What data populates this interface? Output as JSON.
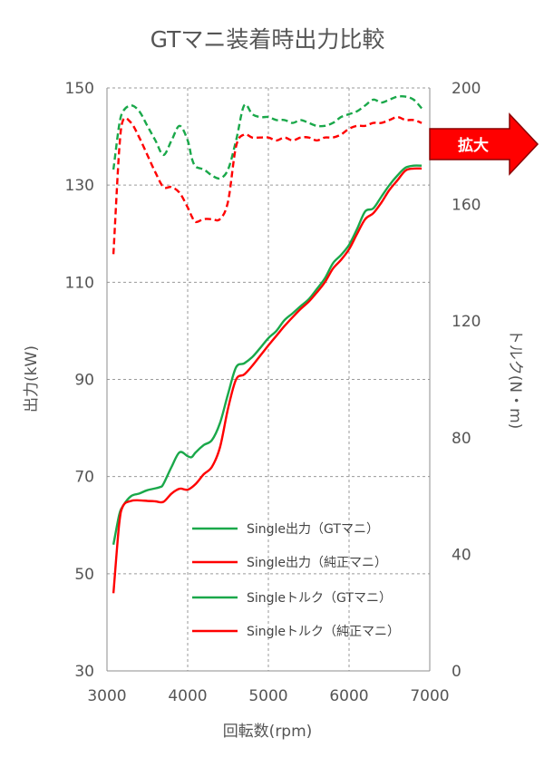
{
  "chart_data": {
    "type": "line",
    "title": "GTマニ装着時出力比較",
    "xlabel": "回転数(rpm)",
    "ylabel": "出力(kW)",
    "y2label": "トルク(N・m)",
    "xlim": [
      3000,
      7000
    ],
    "ylim": [
      30,
      150
    ],
    "y2lim": [
      0,
      200
    ],
    "x_ticks": [
      3000,
      4000,
      5000,
      6000,
      7000
    ],
    "y_ticks": [
      30,
      50,
      70,
      90,
      110,
      130,
      150
    ],
    "y2_ticks": [
      0,
      40,
      80,
      120,
      160,
      200
    ],
    "grid": true,
    "legend_position": "bottom-right inside plot",
    "badge": {
      "text": "拡大",
      "color": "#ff0000"
    },
    "series": [
      {
        "name": "Single出力（GTマニ）",
        "axis": "left",
        "color": "#1aa84a",
        "style": "solid",
        "x": [
          3080,
          3150,
          3200,
          3300,
          3400,
          3500,
          3650,
          3700,
          3800,
          3900,
          4000,
          4050,
          4100,
          4200,
          4300,
          4400,
          4500,
          4600,
          4700,
          4800,
          4900,
          5000,
          5100,
          5200,
          5300,
          5400,
          5500,
          5600,
          5700,
          5800,
          5900,
          6000,
          6100,
          6200,
          6300,
          6400,
          6500,
          6600,
          6700,
          6800,
          6900
        ],
        "values": [
          56,
          62,
          64,
          66,
          66.5,
          67.2,
          67.8,
          68.5,
          72,
          75,
          74.2,
          74,
          75,
          76.5,
          77.5,
          81,
          87,
          92.5,
          93.3,
          94.6,
          96.5,
          98.5,
          100,
          102.2,
          103.6,
          105.1,
          106.5,
          108.6,
          110.8,
          113.9,
          115.6,
          117.7,
          121,
          124.6,
          125.2,
          127.6,
          130,
          132,
          133.6,
          134,
          134
        ]
      },
      {
        "name": "Single出力（純正マニ）",
        "axis": "left",
        "color": "#ff0000",
        "style": "solid",
        "x": [
          3080,
          3150,
          3200,
          3300,
          3400,
          3500,
          3600,
          3700,
          3800,
          3900,
          4000,
          4100,
          4200,
          4300,
          4400,
          4500,
          4600,
          4700,
          4800,
          4900,
          5000,
          5100,
          5200,
          5300,
          5400,
          5500,
          5600,
          5700,
          5800,
          5900,
          6000,
          6100,
          6200,
          6300,
          6400,
          6500,
          6600,
          6700,
          6800,
          6900
        ],
        "values": [
          46,
          60,
          64,
          65,
          65.1,
          65,
          64.9,
          64.8,
          66.5,
          67.5,
          67.3,
          68.5,
          70.5,
          72,
          76,
          84,
          90,
          91,
          92.8,
          94.9,
          97,
          99,
          101,
          102.8,
          104.5,
          106,
          107.9,
          110,
          112.8,
          114.6,
          116.8,
          120,
          123,
          124.2,
          126.4,
          129,
          131,
          133,
          133.4,
          133.4
        ]
      },
      {
        "name": "Singleトルク（GTマニ）",
        "axis": "right",
        "color": "#1aa84a",
        "style": "dashed",
        "x": [
          3080,
          3150,
          3200,
          3300,
          3400,
          3500,
          3600,
          3700,
          3800,
          3900,
          4000,
          4050,
          4100,
          4200,
          4300,
          4400,
          4500,
          4600,
          4700,
          4800,
          4900,
          5000,
          5100,
          5200,
          5300,
          5400,
          5500,
          5600,
          5700,
          5800,
          5900,
          6000,
          6100,
          6200,
          6300,
          6400,
          6500,
          6600,
          6700,
          6800,
          6900
        ],
        "values": [
          172,
          187,
          192,
          194,
          192,
          187,
          182,
          177,
          182,
          187,
          182,
          176,
          173,
          172,
          170,
          169,
          172,
          182,
          194,
          191,
          190,
          190,
          189,
          189,
          188,
          189,
          188,
          187,
          187,
          188,
          190,
          191,
          192,
          194,
          196,
          195,
          196,
          197,
          197,
          196,
          193
        ]
      },
      {
        "name": "Singleトルク（純正マニ）",
        "axis": "right",
        "color": "#ff0000",
        "style": "dashed",
        "x": [
          3080,
          3150,
          3200,
          3300,
          3400,
          3500,
          3600,
          3700,
          3800,
          3900,
          4000,
          4050,
          4100,
          4200,
          4300,
          4400,
          4500,
          4600,
          4700,
          4800,
          4900,
          5000,
          5100,
          5200,
          5300,
          5400,
          5500,
          5600,
          5700,
          5800,
          5900,
          6000,
          6100,
          6200,
          6300,
          6400,
          6500,
          6600,
          6700,
          6800,
          6900
        ],
        "values": [
          143,
          178,
          189,
          188,
          183,
          177,
          171,
          166,
          166,
          164,
          159,
          156,
          154,
          155,
          155,
          155,
          161,
          180,
          184,
          183,
          183,
          183,
          182,
          183,
          182,
          183,
          183,
          182,
          183,
          183,
          184,
          186,
          187,
          187,
          188,
          188,
          189,
          190,
          189,
          189,
          188
        ]
      }
    ]
  }
}
